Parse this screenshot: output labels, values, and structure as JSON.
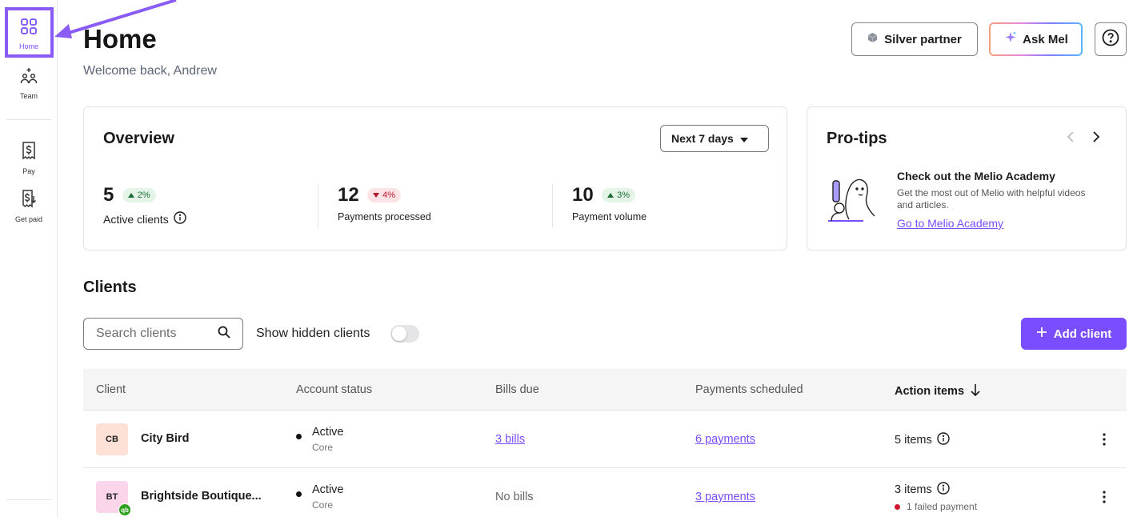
{
  "sidebar": {
    "items": [
      {
        "label": "Home",
        "icon": "grid-icon",
        "active": true
      },
      {
        "label": "Team",
        "icon": "team-icon"
      },
      {
        "label": "Pay",
        "icon": "pay-icon"
      },
      {
        "label": "Get paid",
        "icon": "get-paid-icon"
      }
    ]
  },
  "header": {
    "title": "Home",
    "welcome": "Welcome back, Andrew",
    "partner_label": "Silver partner",
    "ask_label": "Ask Mel",
    "help_icon": "help-icon"
  },
  "overview": {
    "title": "Overview",
    "period": "Next 7 days",
    "stats": [
      {
        "value": "5",
        "change": "2%",
        "direction": "up",
        "label": "Active clients"
      },
      {
        "value": "12",
        "change": "4%",
        "direction": "down",
        "label": "Payments processed"
      },
      {
        "value": "10",
        "change": "3%",
        "direction": "up",
        "label": "Payment volume"
      }
    ]
  },
  "protips": {
    "title": "Pro-tips",
    "tip_title": "Check out the Melio Academy",
    "tip_body": "Get the most out of Melio with helpful videos and articles.",
    "tip_link": "Go to Melio Academy"
  },
  "clients": {
    "title": "Clients",
    "search_placeholder": "Search clients",
    "show_hidden_label": "Show hidden clients",
    "show_hidden_on": false,
    "add_label": "Add client",
    "columns": [
      "Client",
      "Account status",
      "Bills due",
      "Payments scheduled",
      "Action items"
    ],
    "rows": [
      {
        "initials": "CB",
        "avatar_color": "#fde0d6",
        "name": "City Bird",
        "status": "Active",
        "plan": "Core",
        "bills": "3 bills",
        "payments": "6 payments",
        "action": "5 items",
        "failed": ""
      },
      {
        "initials": "BT",
        "avatar_color": "#fbd6ea",
        "name": "Brightside Boutique...",
        "status": "Active",
        "plan": "Core",
        "bills": "No bills",
        "payments": "3 payments",
        "action": "3 items",
        "failed": "1 failed payment",
        "qb_badge": "qb"
      }
    ]
  },
  "colors": {
    "accent": "#7a4dff",
    "highlight": "#8a5cf5"
  }
}
